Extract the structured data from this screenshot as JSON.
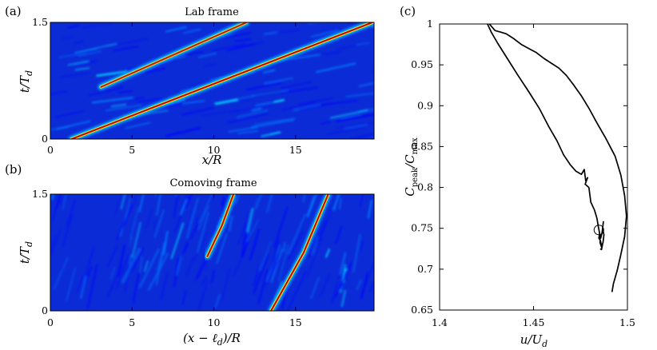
{
  "colors": {
    "colormap": [
      "#00008f",
      "#0000ff",
      "#0080ff",
      "#00ffff",
      "#80ff80",
      "#ffff00",
      "#ff8000",
      "#ff0000",
      "#800000"
    ],
    "background": "#0b2bd6",
    "line": "#000000"
  },
  "panels": {
    "a": {
      "letter": "(a)",
      "title": "Lab frame",
      "xlabel": "x/R",
      "ylabel": "t/T_d"
    },
    "b": {
      "letter": "(b)",
      "title": "Comoving frame",
      "xlabel": "(x − ℓ_d)/R",
      "ylabel": "t/T_d"
    },
    "c": {
      "letter": "(c)",
      "xlabel": "u/U_d",
      "ylabel": "C_peak/C_max"
    }
  },
  "chart_data": [
    {
      "panel": "a",
      "type": "heatmap",
      "title": "Lab frame",
      "xlabel": "x/R",
      "ylabel": "t/T_d",
      "xlim": [
        0,
        19.8
      ],
      "ylim": [
        0,
        1.5
      ],
      "xticks": [
        "0",
        "5",
        "10",
        "15"
      ],
      "yticks": [
        "0",
        "1.5"
      ],
      "ridges": [
        {
          "name": "primary",
          "points": [
            [
              1.3,
              0.0
            ],
            [
              19.7,
              1.5
            ]
          ],
          "peak_level": 0.95
        },
        {
          "name": "secondary",
          "points": [
            [
              3.1,
              0.67
            ],
            [
              12.0,
              1.5
            ]
          ],
          "peak_level": 0.8
        }
      ],
      "grid": false
    },
    {
      "panel": "b",
      "type": "heatmap",
      "title": "Comoving frame",
      "xlabel": "(x − ℓ_d)/R",
      "ylabel": "t/T_d",
      "xlim": [
        0,
        19.8
      ],
      "ylim": [
        0,
        1.5
      ],
      "xticks": [
        "0",
        "5",
        "10",
        "15"
      ],
      "yticks": [
        "0",
        "1.5"
      ],
      "ridges": [
        {
          "name": "primary",
          "points": [
            [
              13.5,
              0.0
            ],
            [
              15.5,
              0.75
            ],
            [
              17.0,
              1.5
            ]
          ],
          "peak_level": 0.95
        },
        {
          "name": "secondary",
          "points": [
            [
              9.6,
              0.7
            ],
            [
              10.5,
              1.1
            ],
            [
              11.2,
              1.5
            ]
          ],
          "peak_level": 0.9
        }
      ],
      "grid": false
    },
    {
      "panel": "c",
      "type": "line",
      "xlabel": "u/U_d",
      "ylabel": "C_peak/C_max",
      "xlim": [
        1.4,
        1.5
      ],
      "ylim": [
        0.65,
        1.0
      ],
      "xticks": [
        "1.4",
        "1.45",
        "1.5"
      ],
      "yticks": [
        "0.65",
        "0.7",
        "0.75",
        "0.8",
        "0.85",
        "0.9",
        "0.95",
        "1"
      ],
      "grid": false,
      "series": [
        {
          "x": [
            1.4265,
            1.4295,
            1.4325,
            1.4355,
            1.4395,
            1.4435,
            1.4475,
            1.4515,
            1.4555,
            1.4595,
            1.4635,
            1.4675,
            1.4715,
            1.4755,
            1.4795,
            1.4835,
            1.4885,
            1.4935,
            1.4965,
            1.4985,
            1.4995,
            1.4985,
            1.4965,
            1.4945,
            1.4925,
            1.4918
          ],
          "y": [
            1.0,
            0.992,
            0.99,
            0.988,
            0.982,
            0.975,
            0.97,
            0.965,
            0.958,
            0.952,
            0.946,
            0.937,
            0.925,
            0.912,
            0.897,
            0.88,
            0.86,
            0.838,
            0.815,
            0.79,
            0.765,
            0.74,
            0.718,
            0.698,
            0.682,
            0.672
          ]
        },
        {
          "x": [
            1.4255,
            1.4275,
            1.431,
            1.436,
            1.4415,
            1.4475,
            1.453,
            1.458,
            1.4625,
            1.466,
            1.4695,
            1.4725,
            1.4755,
            1.477,
            1.4778,
            1.4788,
            1.4775,
            1.4795,
            1.4805,
            1.4825,
            1.4838,
            1.4845,
            1.4852,
            1.4858,
            1.4865,
            1.4872,
            1.4868,
            1.4875,
            1.487,
            1.4862,
            1.4855,
            1.4852,
            1.4848,
            1.4856,
            1.4862,
            1.4868,
            1.4862,
            1.4855
          ],
          "y": [
            1.0,
            0.99,
            0.976,
            0.958,
            0.938,
            0.917,
            0.897,
            0.875,
            0.857,
            0.84,
            0.828,
            0.82,
            0.816,
            0.822,
            0.808,
            0.812,
            0.804,
            0.8,
            0.782,
            0.772,
            0.762,
            0.752,
            0.744,
            0.738,
            0.745,
            0.758,
            0.75,
            0.742,
            0.733,
            0.727,
            0.732,
            0.744,
            0.738,
            0.735,
            0.728,
            0.731,
            0.724,
            0.725
          ]
        }
      ],
      "marker": {
        "shape": "circle",
        "x": 1.4848,
        "y": 0.748
      }
    }
  ]
}
